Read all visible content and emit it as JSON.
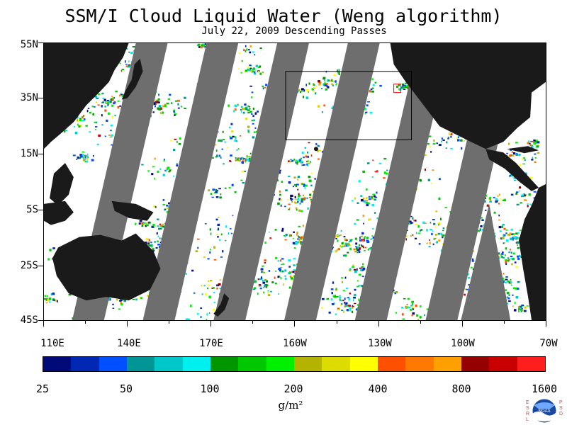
{
  "header": {
    "title": "SSM/I Cloud Liquid Water (Weng algorithm)",
    "subtitle": "July 22, 2009  Descending Passes"
  },
  "map": {
    "lat_labels": [
      "55N",
      "35N",
      "15N",
      "5S",
      "25S",
      "45S"
    ],
    "lon_labels": [
      "110E",
      "140E",
      "170E",
      "160W",
      "130W",
      "100W",
      "70W"
    ],
    "colors": {
      "land": "#1a1a1a",
      "ocean_clear": "#ffffff",
      "no_data_swath": "#6e6e6e",
      "box_outline": "#000000",
      "small_box_outline": "#ff0000"
    }
  },
  "colorbar": {
    "tick_labels": [
      "25",
      "50",
      "100",
      "200",
      "400",
      "800",
      "1600"
    ],
    "units": "g/m²",
    "colors": [
      "#000a78",
      "#0028b4",
      "#0050ff",
      "#009696",
      "#00c8c8",
      "#00f0f0",
      "#009600",
      "#00c800",
      "#00f000",
      "#b4b400",
      "#dcdc00",
      "#ffff00",
      "#ff5000",
      "#ff7800",
      "#ffa000",
      "#960000",
      "#c80000",
      "#ff1e1e"
    ]
  },
  "logo": {
    "agency": "NOAA",
    "left_letters": "ESRL",
    "right_letters": "PSD"
  }
}
